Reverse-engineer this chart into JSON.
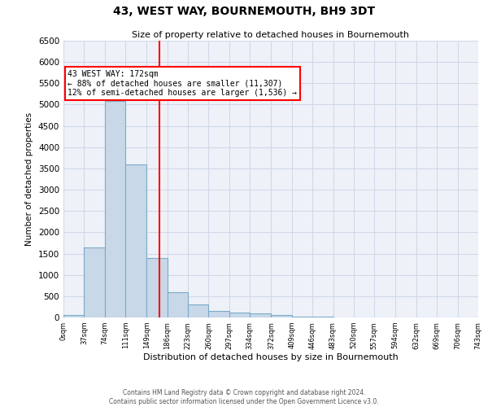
{
  "title": "43, WEST WAY, BOURNEMOUTH, BH9 3DT",
  "subtitle": "Size of property relative to detached houses in Bournemouth",
  "xlabel": "Distribution of detached houses by size in Bournemouth",
  "ylabel": "Number of detached properties",
  "footer_line1": "Contains HM Land Registry data © Crown copyright and database right 2024.",
  "footer_line2": "Contains public sector information licensed under the Open Government Licence v3.0.",
  "bar_left_edges": [
    0,
    37,
    74,
    111,
    149,
    186,
    223,
    260,
    297,
    334,
    372,
    409,
    446,
    483,
    520,
    557,
    594,
    632,
    669,
    706
  ],
  "bar_heights": [
    60,
    1640,
    5080,
    3600,
    1400,
    600,
    300,
    155,
    120,
    95,
    50,
    10,
    10,
    5,
    5,
    0,
    0,
    0,
    0,
    0
  ],
  "bin_width": 37,
  "bar_color": "#c8d8e8",
  "bar_edge_color": "#7aaac8",
  "grid_color": "#d0d8e8",
  "background_color": "#eef2f8",
  "property_line_x": 172,
  "property_line_color": "red",
  "annotation_text": "43 WEST WAY: 172sqm\n← 88% of detached houses are smaller (11,307)\n12% of semi-detached houses are larger (1,536) →",
  "annotation_box_color": "red",
  "tick_labels": [
    "0sqm",
    "37sqm",
    "74sqm",
    "111sqm",
    "149sqm",
    "186sqm",
    "223sqm",
    "260sqm",
    "297sqm",
    "334sqm",
    "372sqm",
    "409sqm",
    "446sqm",
    "483sqm",
    "520sqm",
    "557sqm",
    "594sqm",
    "632sqm",
    "669sqm",
    "706sqm",
    "743sqm"
  ],
  "ylim": [
    0,
    6500
  ],
  "yticks": [
    0,
    500,
    1000,
    1500,
    2000,
    2500,
    3000,
    3500,
    4000,
    4500,
    5000,
    5500,
    6000,
    6500
  ],
  "xlim": [
    0,
    743
  ]
}
